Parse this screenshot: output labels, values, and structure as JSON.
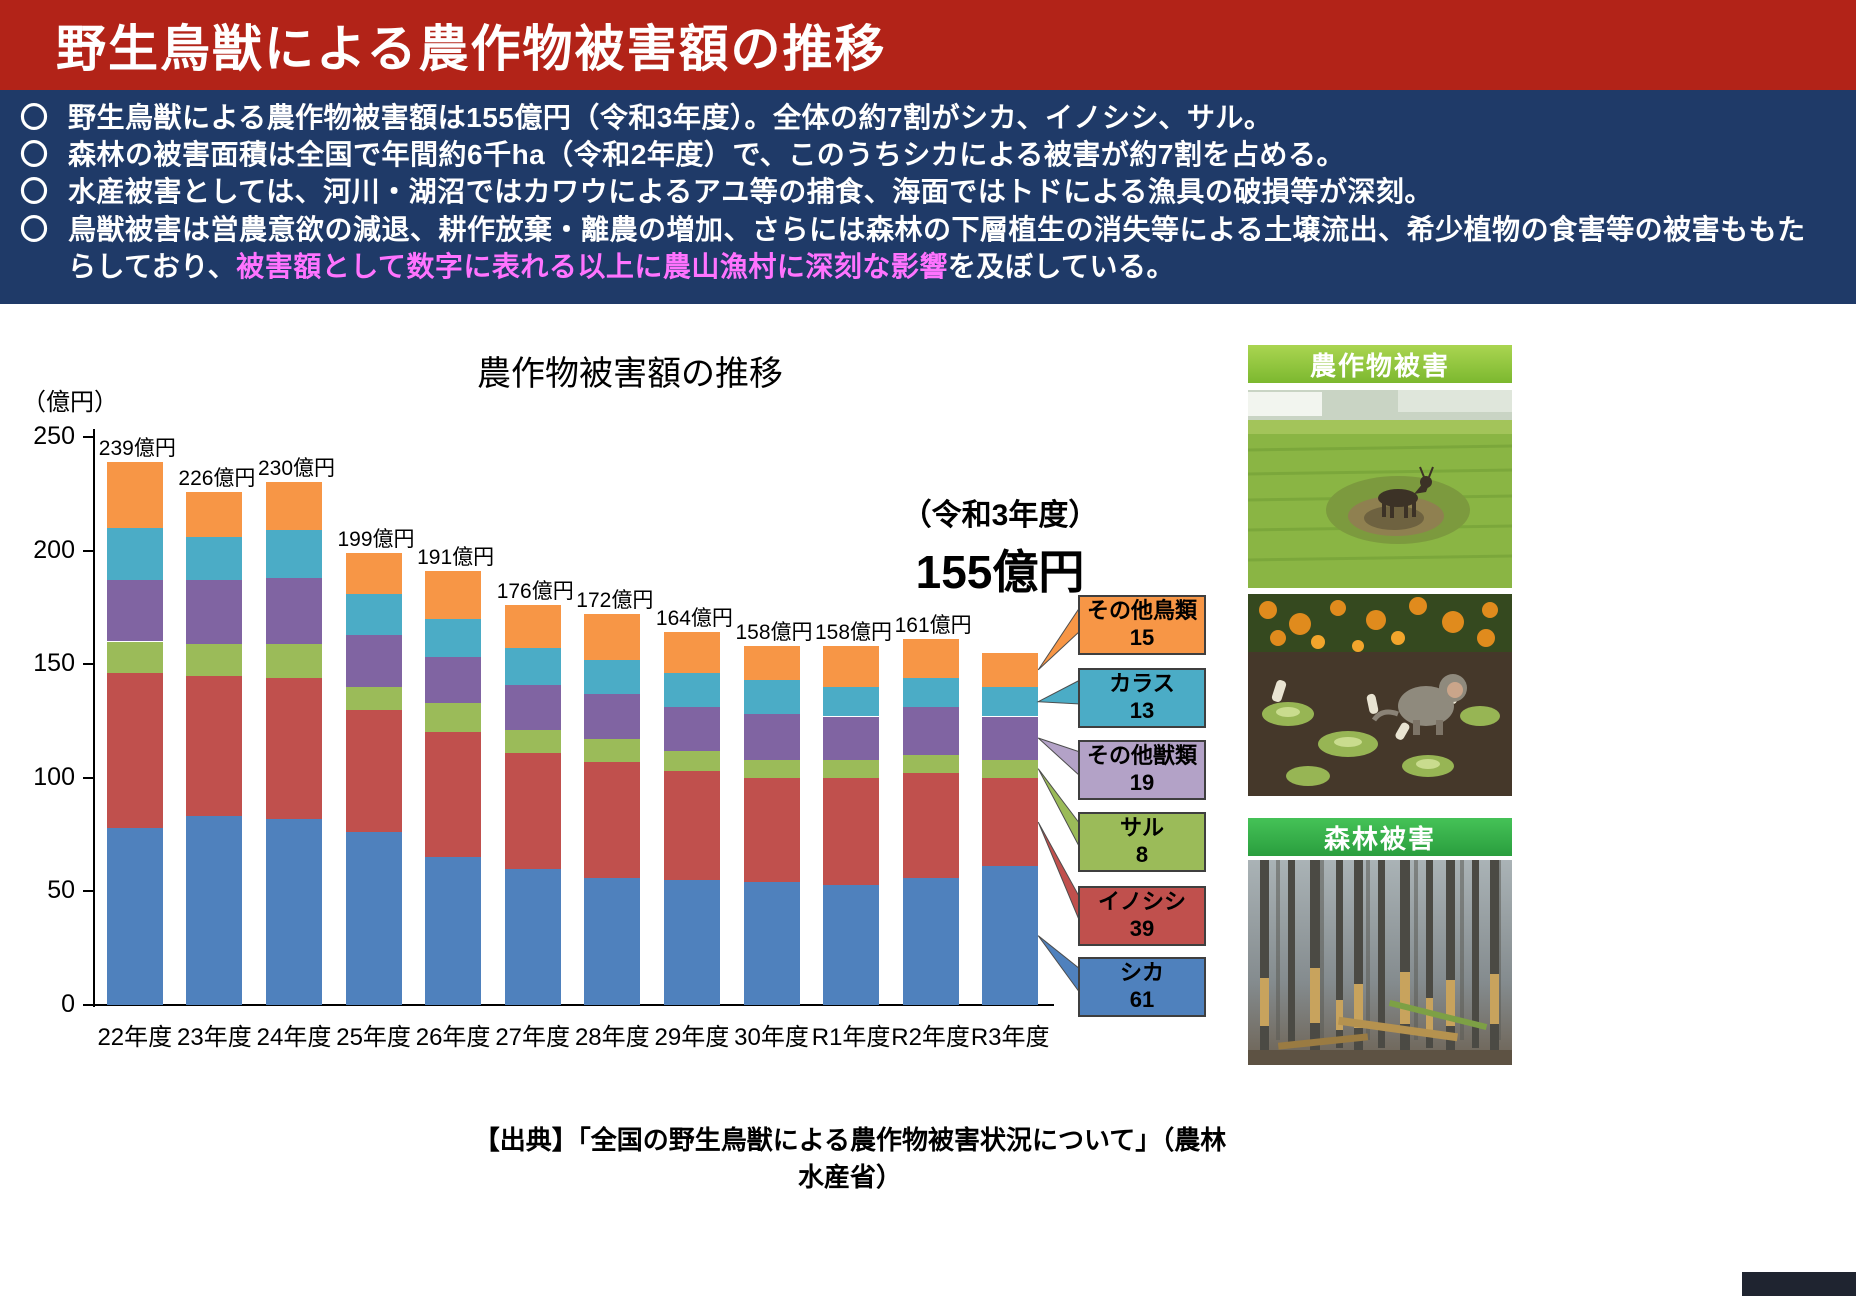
{
  "header": {
    "title": "野生鳥獣による農作物被害額の推移"
  },
  "intro": {
    "highlight_color": "#ff73ff",
    "bullets": [
      {
        "marker": "〇",
        "text": "野生鳥獣による農作物被害額は155億円（令和3年度）。全体の約7割がシカ、イノシシ、サル。"
      },
      {
        "marker": "〇",
        "text": "森林の被害面積は全国で年間約6千ha（令和2年度）で、このうちシカによる被害が約7割を占める。"
      },
      {
        "marker": "〇",
        "text": "水産被害としては、河川・湖沼ではカワウによるアユ等の捕食、海面ではトドによる漁具の破損等が深刻。"
      },
      {
        "marker": "〇",
        "text_before": "鳥獣被害は営農意欲の減退、耕作放棄・離農の増加、さらには森林の下層植生の消失等による土壌流出、希少植物の食害等の被害ももたらしており、",
        "text_highlight": "被害額として数字に表れる以上に農山漁村に深刻な影響",
        "text_after": "を及ぼしている。"
      }
    ]
  },
  "chart_data": {
    "type": "bar",
    "stacked": true,
    "title": "農作物被害額の推移",
    "unit_label": "（億円）",
    "ylim": [
      0,
      250
    ],
    "yticks": [
      0,
      50,
      100,
      150,
      200,
      250
    ],
    "categories": [
      "22年度",
      "23年度",
      "24年度",
      "25年度",
      "26年度",
      "27年度",
      "28年度",
      "29年度",
      "30年度",
      "R1年度",
      "R2年度",
      "R3年度"
    ],
    "totals": [
      239,
      226,
      230,
      199,
      191,
      176,
      172,
      164,
      158,
      158,
      161,
      155
    ],
    "totals_labels": [
      "239億円",
      "226億円",
      "230億円",
      "199億円",
      "191億円",
      "176億円",
      "172億円",
      "164億円",
      "158億円",
      "158億円",
      "161億円",
      ""
    ],
    "annotation": {
      "line1": "（令和3年度）",
      "line2": "155億円"
    },
    "series": [
      {
        "name": "シカ",
        "color": "#4F81BD",
        "values": [
          78,
          83,
          82,
          76,
          65,
          60,
          56,
          55,
          54,
          53,
          56,
          61
        ]
      },
      {
        "name": "イノシシ",
        "color": "#C0504D",
        "values": [
          68,
          62,
          62,
          54,
          55,
          51,
          51,
          48,
          46,
          47,
          46,
          39
        ]
      },
      {
        "name": "サル",
        "color": "#9BBB59",
        "values": [
          14,
          14,
          15,
          10,
          13,
          10,
          10,
          9,
          8,
          8,
          8,
          8
        ]
      },
      {
        "name": "その他獣類",
        "color": "#8064A2",
        "values": [
          27,
          28,
          29,
          23,
          20,
          20,
          20,
          19,
          20,
          19,
          21,
          19
        ]
      },
      {
        "name": "カラス",
        "color": "#4BACC6",
        "values": [
          23,
          19,
          21,
          18,
          17,
          16,
          15,
          15,
          15,
          13,
          13,
          13
        ]
      },
      {
        "name": "その他鳥類",
        "color": "#F79646",
        "values": [
          29,
          20,
          21,
          18,
          21,
          19,
          20,
          18,
          15,
          18,
          17,
          15
        ]
      }
    ],
    "legend": [
      {
        "name": "その他鳥類",
        "value": "15",
        "color": "#F79646"
      },
      {
        "name": "カラス",
        "value": "13",
        "color": "#4BACC6"
      },
      {
        "name": "その他獣類",
        "value": "19",
        "color": "#B3A2C7"
      },
      {
        "name": "サル",
        "value": "8",
        "color": "#9BBB59"
      },
      {
        "name": "イノシシ",
        "value": "39",
        "color": "#C0504D"
      },
      {
        "name": "シカ",
        "value": "61",
        "color": "#4F81BD"
      }
    ],
    "legend_position": "right"
  },
  "source": "【出典】「全国の野生鳥獣による農作物被害状況について」（農林水産省）",
  "side": {
    "crop_label": "農作物被害",
    "forest_label": "森林被害"
  }
}
